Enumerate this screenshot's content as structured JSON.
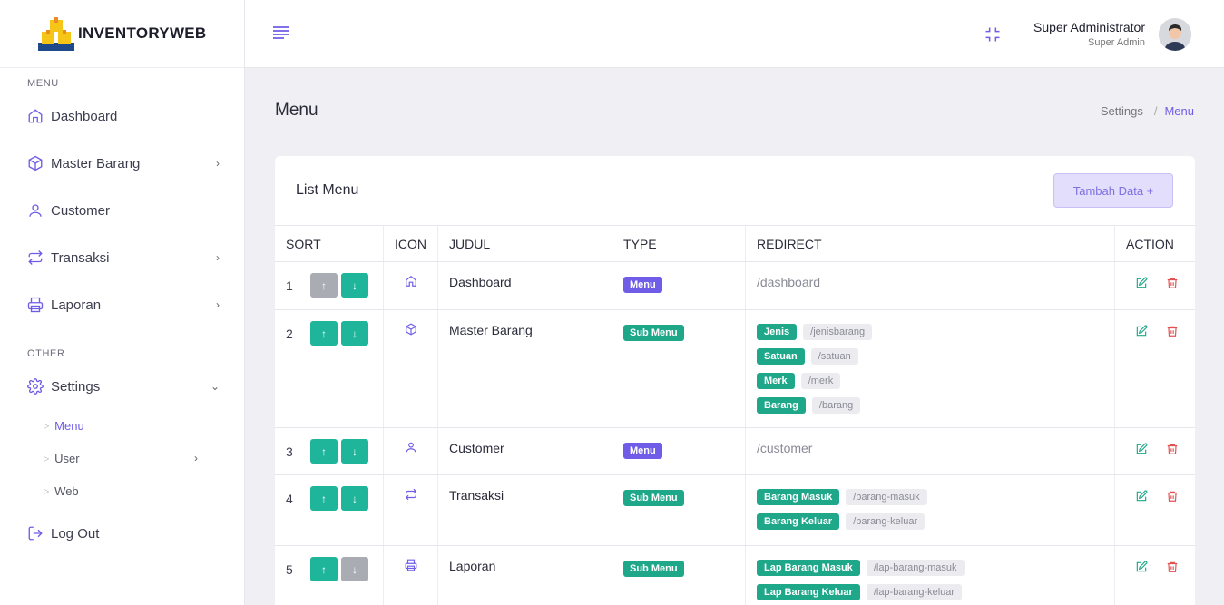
{
  "brand": {
    "name": "INVENTORYWEB"
  },
  "sidebar": {
    "section_menu": "MENU",
    "section_other": "OTHER",
    "items": [
      {
        "label": "Dashboard",
        "icon": "home-icon"
      },
      {
        "label": "Master Barang",
        "icon": "box-icon"
      },
      {
        "label": "Customer",
        "icon": "user-icon"
      },
      {
        "label": "Transaksi",
        "icon": "repeat-icon"
      },
      {
        "label": "Laporan",
        "icon": "printer-icon"
      },
      {
        "label": "Settings",
        "icon": "gear-icon"
      },
      {
        "label": "Log Out",
        "icon": "logout-icon"
      }
    ],
    "settings_sub": [
      {
        "label": "Menu"
      },
      {
        "label": "User"
      },
      {
        "label": "Web"
      }
    ]
  },
  "header": {
    "user_name": "Super Administrator",
    "user_role": "Super Admin"
  },
  "page": {
    "title": "Menu",
    "breadcrumb": [
      "Settings",
      "Menu"
    ]
  },
  "card": {
    "title": "List Menu",
    "add_button": "Tambah Data +"
  },
  "table": {
    "columns": [
      "SORT",
      "ICON",
      "JUDUL",
      "TYPE",
      "REDIRECT",
      "ACTION"
    ],
    "rows": [
      {
        "sort": "1",
        "judul": "Dashboard",
        "type": "Menu",
        "redirect": "/dashboard",
        "icon": "home-icon"
      },
      {
        "sort": "2",
        "judul": "Master Barang",
        "type": "Sub Menu",
        "icon": "box-icon",
        "subs": [
          {
            "label": "Jenis",
            "path": "/jenisbarang"
          },
          {
            "label": "Satuan",
            "path": "/satuan"
          },
          {
            "label": "Merk",
            "path": "/merk"
          },
          {
            "label": "Barang",
            "path": "/barang"
          }
        ]
      },
      {
        "sort": "3",
        "judul": "Customer",
        "type": "Menu",
        "redirect": "/customer",
        "icon": "user-icon"
      },
      {
        "sort": "4",
        "judul": "Transaksi",
        "type": "Sub Menu",
        "icon": "repeat-icon",
        "subs": [
          {
            "label": "Barang Masuk",
            "path": "/barang-masuk"
          },
          {
            "label": "Barang Keluar",
            "path": "/barang-keluar"
          }
        ]
      },
      {
        "sort": "5",
        "judul": "Laporan",
        "type": "Sub Menu",
        "icon": "printer-icon",
        "subs": [
          {
            "label": "Lap Barang Masuk",
            "path": "/lap-barang-masuk"
          },
          {
            "label": "Lap Barang Keluar",
            "path": "/lap-barang-keluar"
          }
        ]
      }
    ]
  },
  "colors": {
    "accent": "#6f5de7",
    "success": "#1fa78a",
    "danger": "#e05252"
  }
}
